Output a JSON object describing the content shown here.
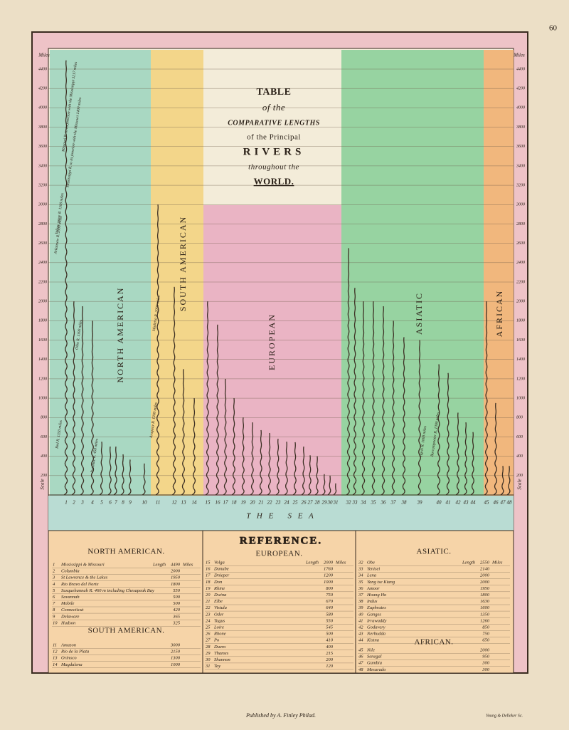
{
  "page_number": "60",
  "scale": {
    "label": "Scale",
    "unit": "Miles",
    "ticks": [
      200,
      400,
      600,
      800,
      1000,
      1200,
      1400,
      1600,
      1800,
      2000,
      2200,
      2400,
      2600,
      2800,
      3000,
      3200,
      3400,
      3600,
      3800,
      4000,
      4200,
      4400
    ]
  },
  "title": [
    "TABLE",
    "of the",
    "COMPARATIVE LENGTHS",
    "of the Principal",
    "RIVERS",
    "throughout the",
    "WORLD."
  ],
  "regions": [
    "NORTH AMERICAN",
    "SOUTH AMERICAN",
    "EUROPEAN",
    "ASIATIC",
    "AFRICAN"
  ],
  "sea": "T H E   S E A",
  "annotations": [
    "Yellow stone R. 1100 miles",
    "Missouri R. to its junction with the Mississippi 3217 miles",
    "Arkansaw R. 2000 miles",
    "Mississippi R. to its junction with the Missouri 1400 miles",
    "Ohio R. 1300 miles",
    "Red R. 1350 miles",
    "Potomac R. 450 miles",
    "Madeira R. 2000 miles",
    "Araguay R. 1300 miles",
    "Tigris R. 1000 miles",
    "Burrampooter R. 1300 miles"
  ],
  "reference": {
    "title": "REFERENCE.",
    "groups": [
      {
        "title": "NORTH AMERICAN.",
        "length_label": "Length",
        "unit": "Miles",
        "rivers": [
          {
            "number": 1,
            "name": "Mississippi & Missouri",
            "length": 4490
          },
          {
            "number": 2,
            "name": "Columbia",
            "length": 2000
          },
          {
            "number": 3,
            "name": "St Lawrence & the Lakes",
            "length": 1950
          },
          {
            "number": 4,
            "name": "Rio Bravo del Norte",
            "length": 1800
          },
          {
            "number": 5,
            "name": "Susquehannah R. 460 m including Chesapeak Bay",
            "length": 550
          },
          {
            "number": 6,
            "name": "Savannah",
            "length": 500
          },
          {
            "number": 7,
            "name": "Mobile",
            "length": 500
          },
          {
            "number": 8,
            "name": "Connecticut",
            "length": 420
          },
          {
            "number": 9,
            "name": "Delaware",
            "length": 365
          },
          {
            "number": 10,
            "name": "Hudson",
            "length": 325
          }
        ]
      },
      {
        "title": "SOUTH AMERICAN.",
        "rivers": [
          {
            "number": 11,
            "name": "Amazon",
            "length": 3000
          },
          {
            "number": 12,
            "name": "Rio de la Plata",
            "length": 2150
          },
          {
            "number": 13,
            "name": "Orinoco",
            "length": 1300
          },
          {
            "number": 14,
            "name": "Magdalena",
            "length": 1000
          }
        ]
      },
      {
        "title": "EUROPEAN.",
        "length_label": "Length",
        "unit": "Miles",
        "rivers": [
          {
            "number": 15,
            "name": "Volga",
            "length": 2000
          },
          {
            "number": 16,
            "name": "Danube",
            "length": 1760
          },
          {
            "number": 17,
            "name": "Dnieper",
            "length": 1200
          },
          {
            "number": 18,
            "name": "Don",
            "length": 1000
          },
          {
            "number": 19,
            "name": "Rhine",
            "length": 800
          },
          {
            "number": 20,
            "name": "Dwina",
            "length": 750
          },
          {
            "number": 21,
            "name": "Elbe",
            "length": 670
          },
          {
            "number": 22,
            "name": "Vistula",
            "length": 640
          },
          {
            "number": 23,
            "name": "Oder",
            "length": 580
          },
          {
            "number": 24,
            "name": "Tagus",
            "length": 550
          },
          {
            "number": 25,
            "name": "Loire",
            "length": 545
          },
          {
            "number": 26,
            "name": "Rhone",
            "length": 500
          },
          {
            "number": 27,
            "name": "Po",
            "length": 410
          },
          {
            "number": 28,
            "name": "Duero",
            "length": 400
          },
          {
            "number": 29,
            "name": "Thames",
            "length": 215
          },
          {
            "number": 30,
            "name": "Shannon",
            "length": 200
          },
          {
            "number": 31,
            "name": "Tay",
            "length": 120
          }
        ]
      },
      {
        "title": "ASIATIC.",
        "length_label": "Length",
        "unit": "Miles",
        "rivers": [
          {
            "number": 32,
            "name": "Obe",
            "length": 2550
          },
          {
            "number": 33,
            "name": "Yenisei",
            "length": 2140
          },
          {
            "number": 34,
            "name": "Lena",
            "length": 2000
          },
          {
            "number": 35,
            "name": "Yang tse Kiang",
            "length": 2000
          },
          {
            "number": 36,
            "name": "Amoor",
            "length": 1950
          },
          {
            "number": 37,
            "name": "Hoang Ho",
            "length": 1800
          },
          {
            "number": 38,
            "name": "Indus",
            "length": 1630
          },
          {
            "number": 39,
            "name": "Euphrates",
            "length": 1600
          },
          {
            "number": 40,
            "name": "Ganges",
            "length": 1350
          },
          {
            "number": 41,
            "name": "Irrawaddy",
            "length": 1260
          },
          {
            "number": 42,
            "name": "Godavery",
            "length": 850
          },
          {
            "number": 43,
            "name": "Nerbudda",
            "length": 750
          },
          {
            "number": 44,
            "name": "Kistna",
            "length": 650
          }
        ]
      },
      {
        "title": "AFRICAN.",
        "rivers": [
          {
            "number": 45,
            "name": "Nile",
            "length": 2000
          },
          {
            "number": 46,
            "name": "Senegal",
            "length": 950
          },
          {
            "number": 47,
            "name": "Gambia",
            "length": 300
          },
          {
            "number": 48,
            "name": "Mesurado",
            "length": 300
          }
        ]
      }
    ]
  },
  "footer": {
    "publisher": "Published by A. Finley Philad.",
    "engraver": "Young & Delleker Sc."
  }
}
